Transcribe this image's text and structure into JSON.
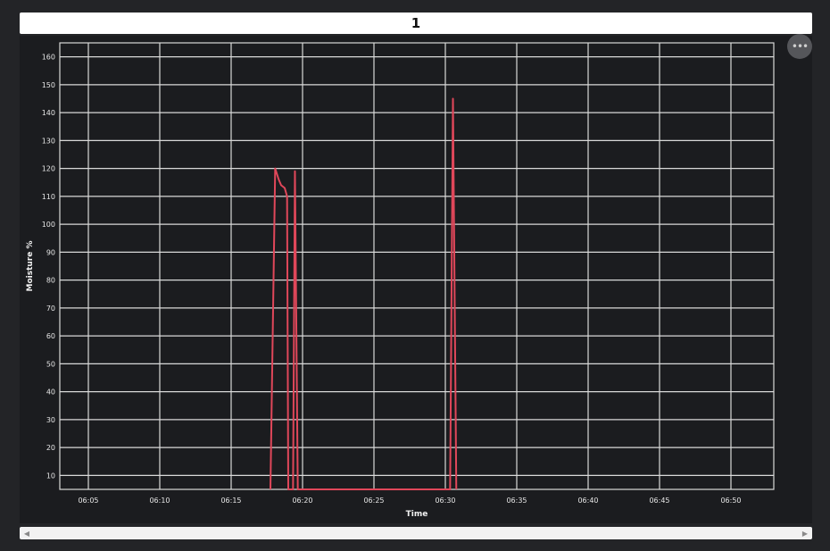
{
  "panel": {
    "title": "1"
  },
  "icons": {
    "menu": "more-horizontal-icon",
    "scroll_left": "chevron-left-icon",
    "scroll_right": "chevron-right-icon"
  },
  "colors": {
    "background": "#232427",
    "plot_background": "#1b1c1f",
    "grid": "#d9d9d9",
    "series": "#e0475a"
  },
  "chart_data": {
    "type": "line",
    "title": "",
    "xlabel": "Time",
    "ylabel": "Moisture %",
    "xlim": [
      "06:03",
      "06:53"
    ],
    "ylim": [
      5,
      165
    ],
    "grid": true,
    "x_ticks": [
      "06:05",
      "06:10",
      "06:15",
      "06:20",
      "06:25",
      "06:30",
      "06:35",
      "06:40",
      "06:45",
      "06:50"
    ],
    "y_ticks": [
      10,
      20,
      30,
      40,
      50,
      60,
      70,
      80,
      90,
      100,
      110,
      120,
      130,
      140,
      150,
      160
    ],
    "series": [
      {
        "points": [
          {
            "x": "06:17:45",
            "y": 5
          },
          {
            "x": "06:18:05",
            "y": 120
          },
          {
            "x": "06:18:20",
            "y": 116
          },
          {
            "x": "06:18:30",
            "y": 114
          },
          {
            "x": "06:18:45",
            "y": 113
          },
          {
            "x": "06:18:55",
            "y": 110
          },
          {
            "x": "06:19:00",
            "y": 5
          },
          {
            "x": "06:19:20",
            "y": 5
          },
          {
            "x": "06:19:28",
            "y": 119
          },
          {
            "x": "06:19:40",
            "y": 5
          },
          {
            "x": "06:30:20",
            "y": 5
          },
          {
            "x": "06:30:32",
            "y": 145
          },
          {
            "x": "06:30:46",
            "y": 5
          }
        ]
      }
    ]
  }
}
